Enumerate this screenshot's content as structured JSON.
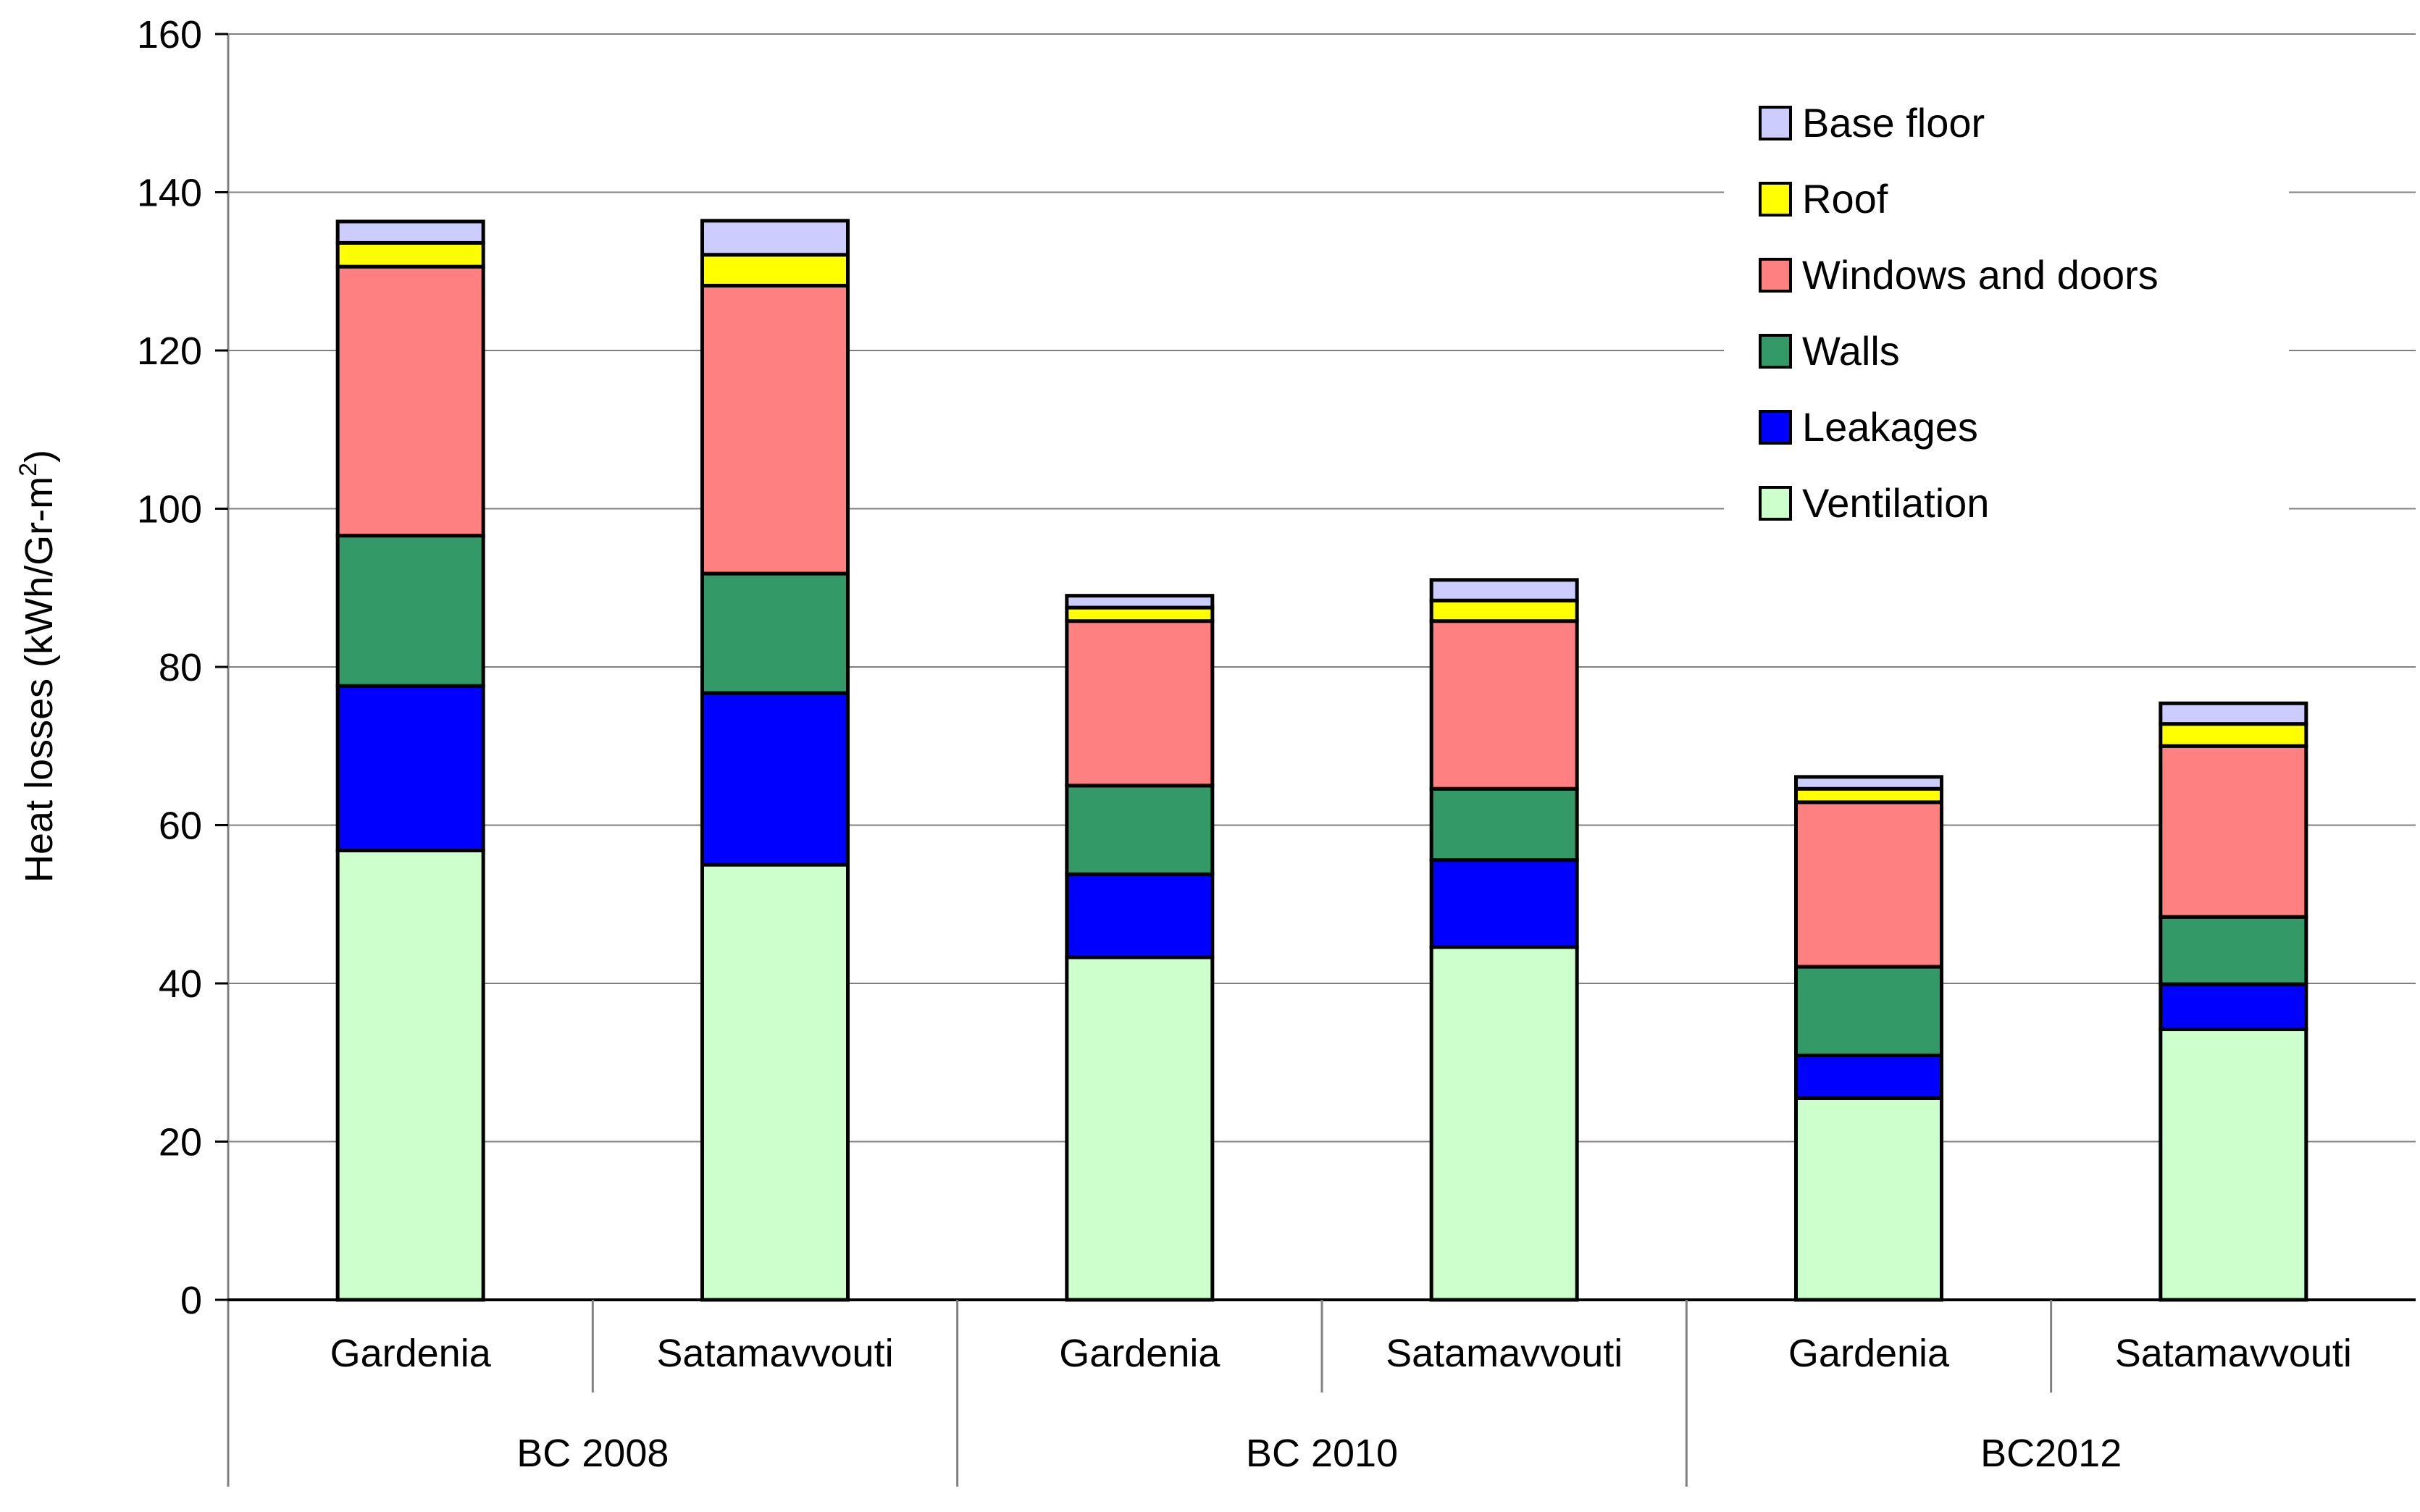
{
  "chart_data": {
    "type": "stacked-bar",
    "title": "",
    "ylabel": "Heat losses (kWh/Gr-m",
    "ylabel_sup": "2",
    "ylabel_end": ")",
    "ylim": [
      0,
      160
    ],
    "yticks": [
      0,
      20,
      40,
      60,
      80,
      100,
      120,
      140,
      160
    ],
    "grid": true,
    "legend_position": "top-right",
    "categories": [
      "Gardenia",
      "Satamavvouti",
      "Gardenia",
      "Satamavvouti",
      "Gardenia",
      "Satamavvouti"
    ],
    "groups": [
      {
        "label": "BC 2008",
        "categories": [
          "Gardenia",
          "Satamavvouti"
        ]
      },
      {
        "label": "BC 2010",
        "categories": [
          "Gardenia",
          "Satamavvouti"
        ]
      },
      {
        "label": "BC2012",
        "categories": [
          "Gardenia",
          "Satamavvouti"
        ]
      }
    ],
    "series": [
      {
        "name": "Ventilation",
        "color": "#CCFFCC",
        "values": [
          56.8,
          55.0,
          43.3,
          44.6,
          25.5,
          34.2
        ]
      },
      {
        "name": "Leakages",
        "color": "#0000FF",
        "values": [
          20.8,
          21.7,
          10.5,
          11.0,
          5.4,
          5.7
        ]
      },
      {
        "name": "Walls",
        "color": "#339966",
        "values": [
          19.0,
          15.1,
          11.2,
          9.0,
          11.2,
          8.5
        ]
      },
      {
        "name": "Windows and doors",
        "color": "#FF8080",
        "values": [
          34.0,
          36.4,
          20.8,
          21.2,
          20.8,
          21.6
        ]
      },
      {
        "name": "Roof",
        "color": "#FFFF00",
        "values": [
          3.0,
          3.9,
          1.7,
          2.6,
          1.7,
          2.8
        ]
      },
      {
        "name": "Base floor",
        "color": "#CCCCFF",
        "values": [
          2.7,
          4.3,
          1.5,
          2.6,
          1.5,
          2.6
        ]
      }
    ],
    "legend_order": [
      "Base floor",
      "Roof",
      "Windows and doors",
      "Walls",
      "Leakages",
      "Ventilation"
    ]
  }
}
